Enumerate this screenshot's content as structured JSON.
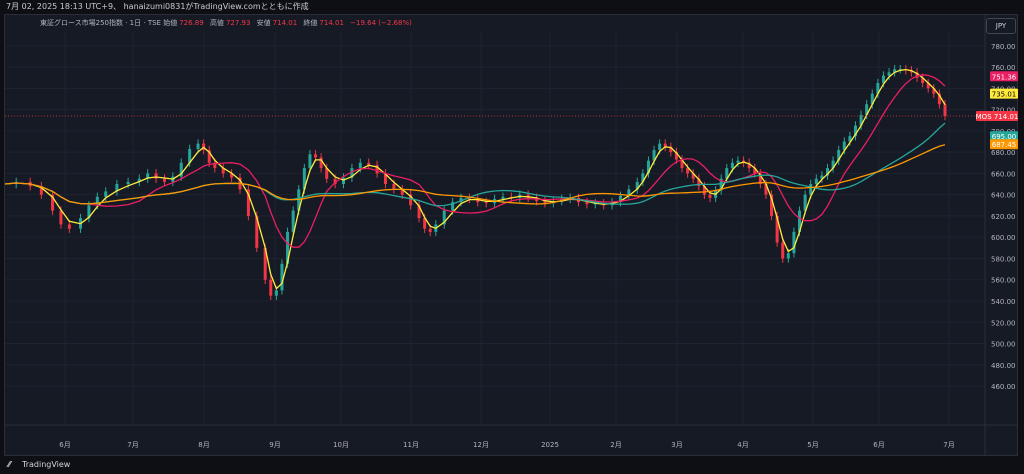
{
  "header": {
    "snapshot_text": "7月 02, 2025 18:13 UTC+9、 hanaizumi0831がTradingView.comとともに作成"
  },
  "legend": {
    "symbol": "東証グロース市場250指数 · 1日 · TSE",
    "open_label": "始値",
    "open": "726.89",
    "high_label": "高値",
    "high": "727.93",
    "low_label": "安値",
    "low": "714.01",
    "close_label": "終値",
    "close": "714.01",
    "change": "−19.64 (−2.68%)"
  },
  "currency_button": "JPY",
  "footer": {
    "logo_icon": "tradingview-logo-icon",
    "brand": "TradingView"
  },
  "colors": {
    "up": "#26a69a",
    "down": "#f23645",
    "ma_yellow": "#ffeb3b",
    "ma_pink": "#e91e63",
    "ma_teal": "#26a69a",
    "ma_orange": "#ff9800",
    "grid": "#1f2330",
    "axis_text": "#b2b5be"
  },
  "chart_data": {
    "type": "candlestick",
    "x_tick_labels": [
      "6月",
      "7月",
      "8月",
      "9月",
      "10月",
      "11月",
      "12月",
      "2025",
      "2月",
      "3月",
      "4月",
      "5月",
      "6月",
      "7月"
    ],
    "y_tick_labels": [
      "780.00",
      "760.00",
      "740.00",
      "720.00",
      "700.00",
      "680.00",
      "660.00",
      "640.00",
      "620.00",
      "600.00",
      "580.00",
      "560.00",
      "540.00",
      "520.00",
      "500.00",
      "480.00",
      "460.00"
    ],
    "ylim": [
      445,
      793
    ],
    "price_labels": [
      {
        "text": "751.36",
        "value": 751.36,
        "color": "#e91e63"
      },
      {
        "text": "735.01",
        "value": 735.01,
        "color": "#ffeb3b"
      },
      {
        "text": "MOS 714.01",
        "value": 714.01,
        "color": "#f23645"
      },
      {
        "text": "695.00",
        "value": 695.0,
        "color": "#26a69a"
      },
      {
        "text": "687.45",
        "value": 687.45,
        "color": "#ff9800"
      }
    ],
    "close_path": [
      [
        0,
        650
      ],
      [
        8,
        652
      ],
      [
        18,
        648
      ],
      [
        26,
        640
      ],
      [
        34,
        625
      ],
      [
        40,
        612
      ],
      [
        46,
        608
      ],
      [
        54,
        618
      ],
      [
        60,
        630
      ],
      [
        66,
        638
      ],
      [
        72,
        643
      ],
      [
        80,
        650
      ],
      [
        88,
        652
      ],
      [
        96,
        655
      ],
      [
        102,
        660
      ],
      [
        108,
        655
      ],
      [
        114,
        652
      ],
      [
        120,
        657
      ],
      [
        126,
        670
      ],
      [
        132,
        683
      ],
      [
        138,
        688
      ],
      [
        142,
        682
      ],
      [
        146,
        670
      ],
      [
        150,
        665
      ],
      [
        156,
        660
      ],
      [
        162,
        656
      ],
      [
        168,
        645
      ],
      [
        174,
        620
      ],
      [
        180,
        590
      ],
      [
        186,
        560
      ],
      [
        190,
        545
      ],
      [
        194,
        550
      ],
      [
        198,
        575
      ],
      [
        202,
        605
      ],
      [
        206,
        625
      ],
      [
        210,
        645
      ],
      [
        214,
        665
      ],
      [
        218,
        678
      ],
      [
        222,
        675
      ],
      [
        226,
        665
      ],
      [
        230,
        655
      ],
      [
        236,
        650
      ],
      [
        242,
        656
      ],
      [
        248,
        665
      ],
      [
        254,
        670
      ],
      [
        260,
        668
      ],
      [
        266,
        660
      ],
      [
        272,
        650
      ],
      [
        278,
        645
      ],
      [
        284,
        640
      ],
      [
        290,
        630
      ],
      [
        296,
        618
      ],
      [
        300,
        608
      ],
      [
        304,
        605
      ],
      [
        308,
        612
      ],
      [
        314,
        625
      ],
      [
        320,
        633
      ],
      [
        326,
        637
      ],
      [
        332,
        636
      ],
      [
        338,
        633
      ],
      [
        344,
        632
      ],
      [
        350,
        636
      ],
      [
        356,
        638
      ],
      [
        362,
        637
      ],
      [
        368,
        640
      ],
      [
        374,
        637
      ],
      [
        380,
        634
      ],
      [
        386,
        632
      ],
      [
        392,
        634
      ],
      [
        398,
        636
      ],
      [
        404,
        637
      ],
      [
        410,
        633
      ],
      [
        416,
        631
      ],
      [
        422,
        632
      ],
      [
        428,
        630
      ],
      [
        434,
        633
      ],
      [
        440,
        639
      ],
      [
        446,
        645
      ],
      [
        452,
        652
      ],
      [
        456,
        660
      ],
      [
        460,
        672
      ],
      [
        464,
        682
      ],
      [
        468,
        688
      ],
      [
        472,
        685
      ],
      [
        476,
        680
      ],
      [
        480,
        673
      ],
      [
        484,
        665
      ],
      [
        488,
        660
      ],
      [
        492,
        655
      ],
      [
        496,
        648
      ],
      [
        500,
        640
      ],
      [
        504,
        637
      ],
      [
        508,
        644
      ],
      [
        512,
        655
      ],
      [
        516,
        665
      ],
      [
        520,
        670
      ],
      [
        524,
        672
      ],
      [
        528,
        670
      ],
      [
        532,
        665
      ],
      [
        536,
        660
      ],
      [
        540,
        650
      ],
      [
        544,
        640
      ],
      [
        548,
        620
      ],
      [
        552,
        595
      ],
      [
        556,
        580
      ],
      [
        560,
        585
      ],
      [
        564,
        605
      ],
      [
        568,
        625
      ],
      [
        572,
        640
      ],
      [
        576,
        650
      ],
      [
        580,
        655
      ],
      [
        584,
        658
      ],
      [
        588,
        665
      ],
      [
        592,
        672
      ],
      [
        596,
        682
      ],
      [
        600,
        690
      ],
      [
        604,
        695
      ],
      [
        608,
        705
      ],
      [
        612,
        715
      ],
      [
        616,
        725
      ],
      [
        620,
        735
      ],
      [
        624,
        745
      ],
      [
        628,
        752
      ],
      [
        632,
        755
      ],
      [
        636,
        758
      ],
      [
        640,
        758
      ],
      [
        644,
        757
      ],
      [
        648,
        755
      ],
      [
        652,
        750
      ],
      [
        656,
        745
      ],
      [
        660,
        740
      ],
      [
        664,
        735
      ],
      [
        668,
        725
      ],
      [
        672,
        714
      ]
    ],
    "ma_yellow_label_value": 735.01,
    "ma_pink_label_value": 751.36,
    "ma_teal_label_value": 695.0,
    "ma_orange_label_value": 687.45
  }
}
